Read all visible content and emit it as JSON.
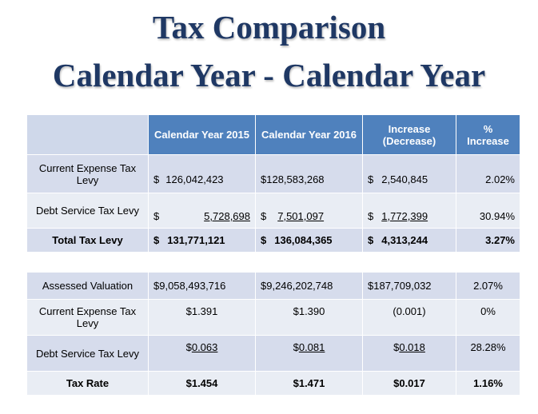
{
  "title": {
    "line1": "Tax Comparison",
    "line2": "Calendar Year - Calendar Year"
  },
  "top_table": {
    "headers": [
      "",
      "Calendar Year 2015",
      "Calendar Year 2016",
      "Increase (Decrease)",
      "% Increase"
    ],
    "rows": [
      {
        "label": "Current Expense Tax Levy",
        "cy2015_symbol": "$",
        "cy2015_value": "126,042,423",
        "cy2016": "$128,583,268",
        "inc_symbol": "$",
        "inc_value": "2,540,845",
        "pct": "2.02%"
      },
      {
        "label": "Debt Service Tax Levy",
        "cy2015_symbol": "$",
        "cy2015_value": "5,728,698",
        "cy2016_symbol": "$",
        "cy2016_value": "7,501,097",
        "inc_symbol": "$",
        "inc_value": "1,772,399",
        "pct": "30.94%"
      },
      {
        "label": "Total Tax Levy",
        "cy2015_symbol": "$",
        "cy2015_value": "131,771,121",
        "cy2016_symbol": "$",
        "cy2016_value": "136,084,365",
        "inc_symbol": "$",
        "inc_value": "4,313,244",
        "pct": "3.27%"
      }
    ]
  },
  "bottom_table": {
    "rows": [
      {
        "label": "Assessed Valuation",
        "cy2015": "$9,058,493,716",
        "cy2016": "$9,246,202,748",
        "inc": "$187,709,032",
        "pct": "2.07%"
      },
      {
        "label": "Current Expense Tax Levy",
        "cy2015": "$1.391",
        "cy2016": "$1.390",
        "inc": "(0.001)",
        "pct": "0%"
      },
      {
        "label": "Debt Service Tax Levy",
        "cy2015_symbol": "$",
        "cy2015_value": "0.063",
        "cy2016_symbol": "$",
        "cy2016_value": "0.081",
        "inc_symbol": "$",
        "inc_value": "0.018",
        "pct": "28.28%"
      },
      {
        "label": "Tax Rate",
        "cy2015": "$1.454",
        "cy2016": "$1.471",
        "inc": "$0.017",
        "pct": "1.16%"
      }
    ]
  },
  "colors": {
    "title": "#1f3864",
    "header_bg": "#4f81bd",
    "row_dark": "#d6dcec",
    "row_light": "#e9edf4"
  }
}
